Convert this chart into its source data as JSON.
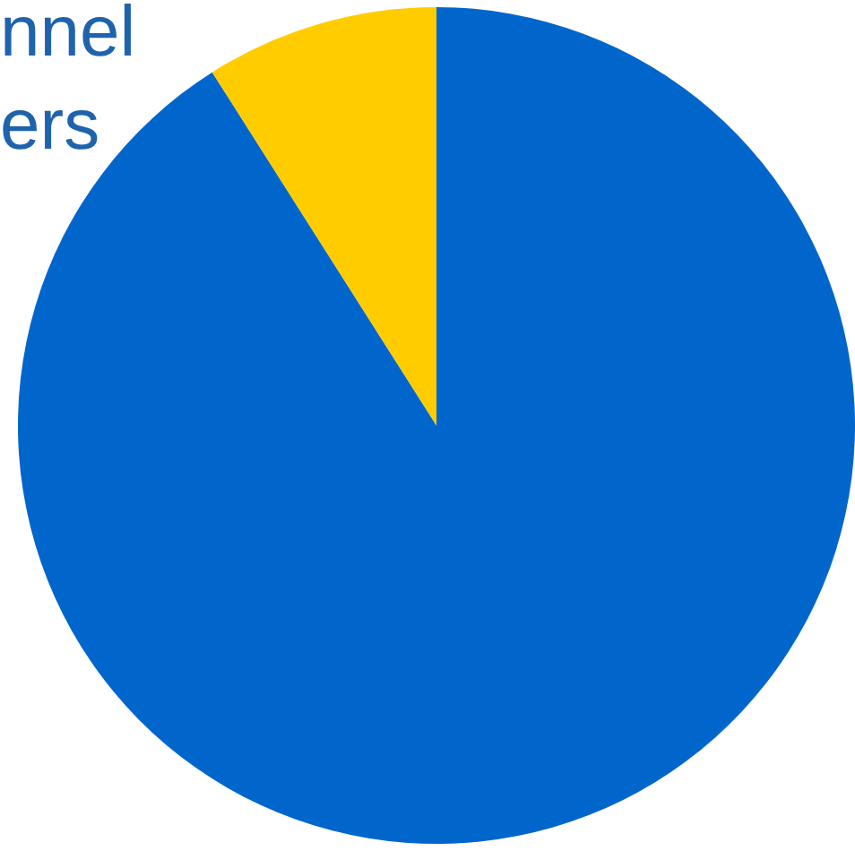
{
  "chart_data": {
    "type": "pie",
    "annotations": [
      "nnel",
      "ers"
    ],
    "categories": [
      null,
      null
    ],
    "values": [
      91,
      9
    ],
    "colors": [
      "#0066cc",
      "#ffcc00"
    ],
    "legend": false
  }
}
